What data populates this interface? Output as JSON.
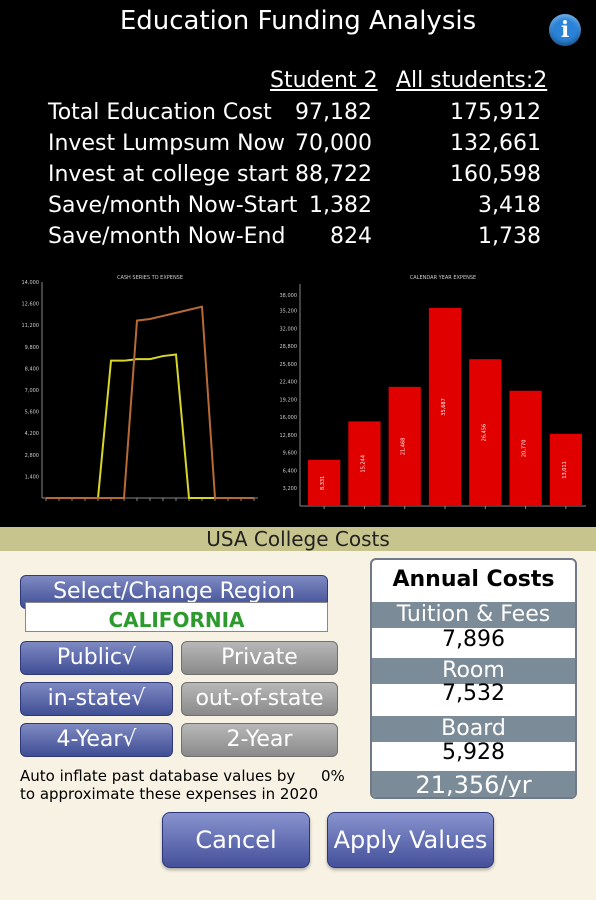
{
  "title": "Education Funding Analysis",
  "info_icon": "info-icon",
  "summary": {
    "col1_header": "Student 2",
    "col2_header": "All students:2",
    "rows": [
      {
        "label": "Total Education Cost",
        "student": "97,182",
        "all": "175,912"
      },
      {
        "label": "Invest Lumpsum Now",
        "student": "70,000",
        "all": "132,661"
      },
      {
        "label": "Invest at college start",
        "student": "88,722",
        "all": "160,598"
      },
      {
        "label": "Save/month Now-Start",
        "student": "1,382",
        "all": "3,418"
      },
      {
        "label": "Save/month Now-End",
        "student": "824",
        "all": "1,738"
      }
    ]
  },
  "chart_data": [
    {
      "type": "line",
      "title": "CASH SERIES TO EXPENSE",
      "y_ticks": [
        "14,000",
        "12,600",
        "11,200",
        "9,800",
        "8,400",
        "7,000",
        "5,600",
        "4,200",
        "2,800",
        "1,400"
      ],
      "ylim": [
        0,
        14000
      ],
      "series": [
        {
          "color": "#d6d629",
          "x": [
            0,
            1,
            2,
            3,
            4,
            5,
            6,
            7,
            8,
            9,
            10,
            11,
            12,
            13,
            14,
            15,
            16
          ],
          "y": [
            0,
            0,
            0,
            0,
            0,
            8900,
            8900,
            9000,
            9000,
            9200,
            9300,
            0,
            0,
            0,
            0,
            0,
            0
          ]
        },
        {
          "color": "#b86a36",
          "x": [
            0,
            1,
            2,
            3,
            4,
            5,
            6,
            7,
            8,
            9,
            10,
            11,
            12,
            13,
            14,
            15,
            16
          ],
          "y": [
            0,
            0,
            0,
            0,
            0,
            0,
            0,
            11500,
            11600,
            11800,
            12000,
            12200,
            12400,
            0,
            0,
            0,
            0
          ]
        }
      ]
    },
    {
      "type": "bar",
      "title": "CALENDAR YEAR EXPENSE",
      "y_ticks": [
        "38,000",
        "35,200",
        "32,000",
        "28,800",
        "25,600",
        "22,400",
        "19,200",
        "16,000",
        "12,800",
        "9,600",
        "6,400",
        "3,200"
      ],
      "ylim": [
        0,
        40000
      ],
      "values": [
        8331,
        15244,
        21468,
        35687,
        26456,
        20770,
        13011
      ],
      "value_labels": [
        "8,331",
        "15,244",
        "21,468",
        "35,687",
        "26,456",
        "20,770",
        "13,011"
      ],
      "color": "#e00000"
    }
  ],
  "section_title": "USA College Costs",
  "region": {
    "button_label": "Select/Change Region",
    "value": "CALIFORNIA"
  },
  "toggles": [
    {
      "left": "Public√",
      "right": "Private"
    },
    {
      "left": "in-state√",
      "right": "out-of-state"
    },
    {
      "left": "4-Year√",
      "right": "2-Year"
    }
  ],
  "note": {
    "line1": "Auto inflate past database values by",
    "pct": "0%",
    "line2": "to approximate these expenses in 2020"
  },
  "costs": {
    "header": "Annual Costs",
    "tuition_label": "Tuition & Fees",
    "tuition_value": "7,896",
    "room_label": "Room",
    "room_value": "7,532",
    "board_label": "Board",
    "board_value": "5,928",
    "total": "21,356/yr"
  },
  "buttons": {
    "cancel": "Cancel",
    "apply": "Apply Values"
  },
  "colors": {
    "accent_blue": "#44509a",
    "region_green": "#2c9a2c",
    "bar_red": "#e00000"
  }
}
